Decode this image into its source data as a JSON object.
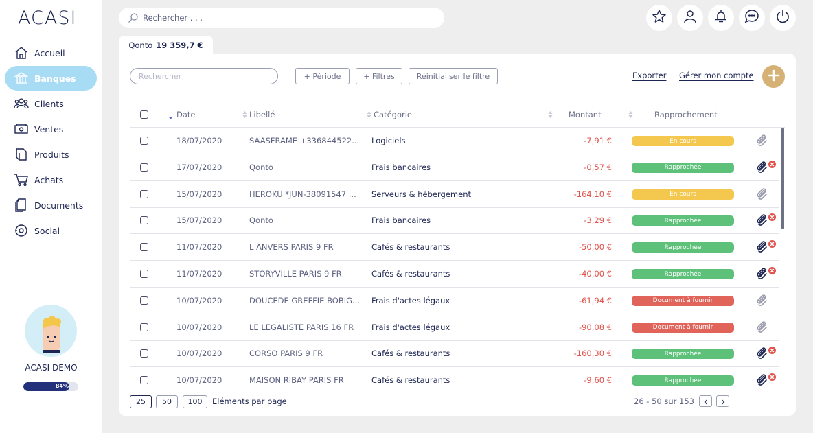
{
  "app": {
    "logo": "ACASI"
  },
  "sidebar": {
    "items": [
      {
        "label": "Accueil",
        "icon": "home-icon"
      },
      {
        "label": "Banques",
        "icon": "bank-icon",
        "active": true
      },
      {
        "label": "Clients",
        "icon": "clients-icon"
      },
      {
        "label": "Ventes",
        "icon": "sales-icon"
      },
      {
        "label": "Produits",
        "icon": "products-icon"
      },
      {
        "label": "Achats",
        "icon": "cart-icon"
      },
      {
        "label": "Documents",
        "icon": "documents-icon"
      },
      {
        "label": "Social",
        "icon": "social-icon"
      }
    ],
    "user": {
      "name": "ACASI DEMO",
      "progress_label": "84%",
      "progress": 0.84
    }
  },
  "topbar": {
    "search_placeholder": "Rechercher . . .",
    "icons": [
      "star-icon",
      "user-icon",
      "bell-icon",
      "chat-icon",
      "power-icon"
    ]
  },
  "tab": {
    "name": "Qonto",
    "balance": "19 359,7 €"
  },
  "filters": {
    "search_placeholder": "Rechercher",
    "period": "+ Période",
    "filters": "+ Filtres",
    "reset": "Réinitialiser le filtre",
    "export": "Exporter",
    "manage": "Gérer mon compte"
  },
  "table": {
    "columns": {
      "date": "Date",
      "label": "Libellé",
      "category": "Catégorie",
      "amount": "Montant",
      "reconciliation": "Rapprochement"
    },
    "rows": [
      {
        "date": "18/07/2020",
        "label": "SAASFRAME +336844522...",
        "category": "Logiciels",
        "amount": "-7,91 €",
        "status": "En cours",
        "status_type": "pending",
        "attached": false
      },
      {
        "date": "17/07/2020",
        "label": "Qonto",
        "category": "Frais bancaires",
        "amount": "-0,57 €",
        "status": "Rapprochée",
        "status_type": "matched",
        "attached": true
      },
      {
        "date": "15/07/2020",
        "label": "HEROKU *JUN-38091547 ...",
        "category": "Serveurs & hébergement",
        "amount": "-164,10 €",
        "status": "En cours",
        "status_type": "pending",
        "attached": false
      },
      {
        "date": "15/07/2020",
        "label": "Qonto",
        "category": "Frais bancaires",
        "amount": "-3,29 €",
        "status": "Rapprochée",
        "status_type": "matched",
        "attached": true
      },
      {
        "date": "11/07/2020",
        "label": "L ANVERS PARIS 9 FR",
        "category": "Cafés & restaurants",
        "amount": "-50,00 €",
        "status": "Rapprochée",
        "status_type": "matched",
        "attached": true
      },
      {
        "date": "11/07/2020",
        "label": "STORYVILLE PARIS 9 FR",
        "category": "Cafés & restaurants",
        "amount": "-40,00 €",
        "status": "Rapprochée",
        "status_type": "matched",
        "attached": true
      },
      {
        "date": "10/07/2020",
        "label": "DOUCEDE GREFFIE BOBIG...",
        "category": "Frais d'actes légaux",
        "amount": "-61,94 €",
        "status": "Document à fournir",
        "status_type": "missing",
        "attached": false
      },
      {
        "date": "10/07/2020",
        "label": "LE LEGALISTE PARIS 16 FR",
        "category": "Frais d'actes légaux",
        "amount": "-90,08 €",
        "status": "Document à fournir",
        "status_type": "missing",
        "attached": false
      },
      {
        "date": "10/07/2020",
        "label": "CORSO PARIS 9 FR",
        "category": "Cafés & restaurants",
        "amount": "-160,30 €",
        "status": "Rapprochée",
        "status_type": "matched",
        "attached": true
      },
      {
        "date": "10/07/2020",
        "label": "MAISON RIBAY PARIS FR",
        "category": "Cafés & restaurants",
        "amount": "-9,60 €",
        "status": "Rapprochée",
        "status_type": "matched",
        "attached": true
      }
    ]
  },
  "pagination": {
    "sizes": [
      "25",
      "50",
      "100"
    ],
    "selected": "25",
    "per_page_label": "Eléments par page",
    "range": "26 - 50 sur 153"
  },
  "colors": {
    "pending": "#f4c74f",
    "matched": "#5dc17a",
    "missing": "#e0645a",
    "accent": "#a8dcf4",
    "gold": "#d5b176",
    "navy": "#1d2552"
  }
}
